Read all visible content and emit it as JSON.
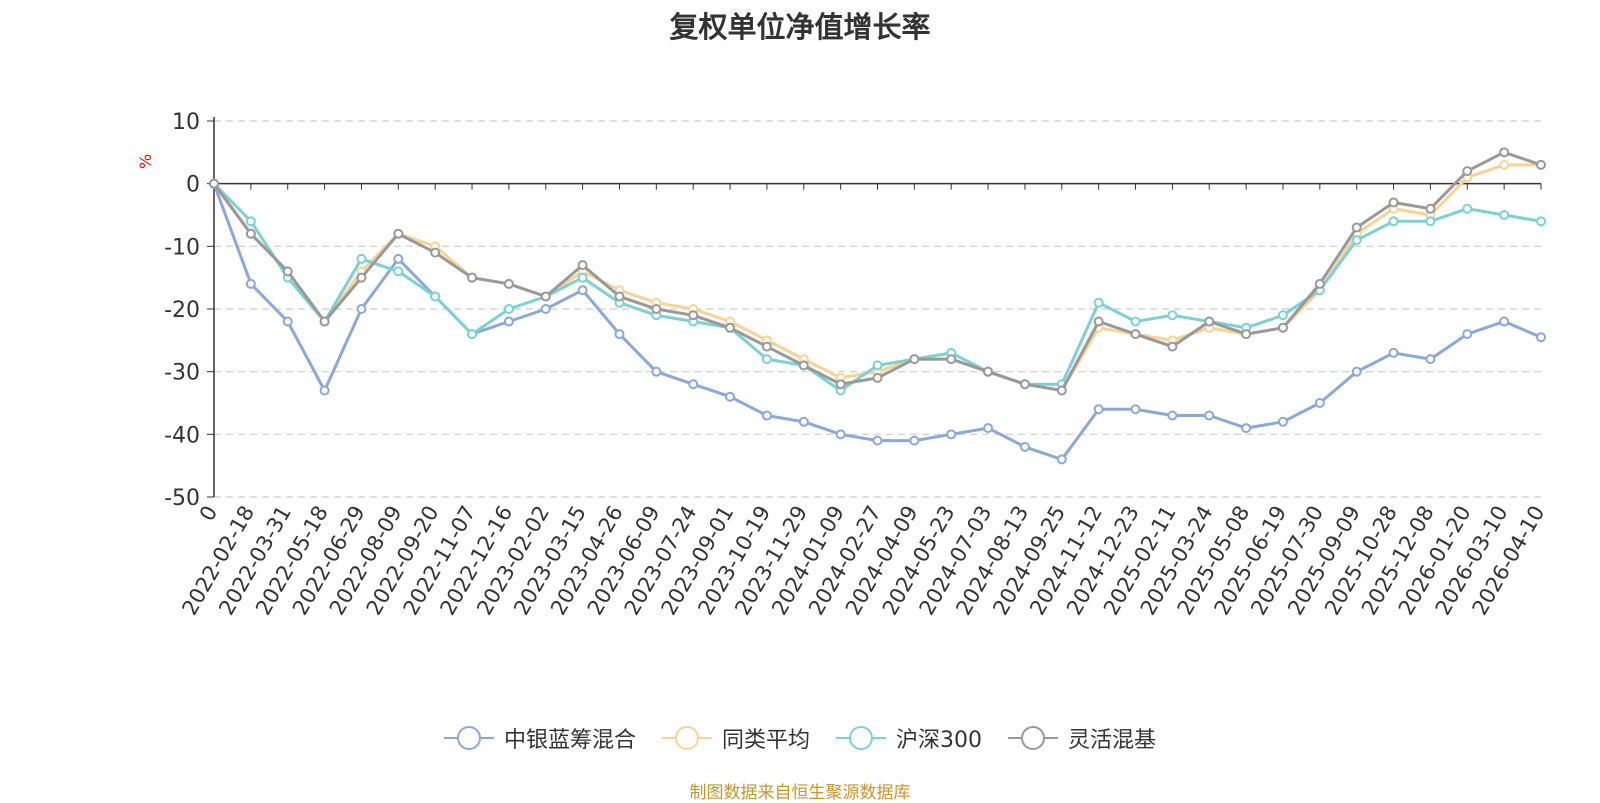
{
  "chart_data": {
    "type": "line",
    "title": "复权单位净值增长率",
    "ylabel": "%",
    "ylim": [
      -50,
      10
    ],
    "yticks": [
      10,
      0,
      -10,
      -20,
      -30,
      -40,
      -50
    ],
    "x_tick_labels": [
      "0",
      "2022-02-18",
      "2022-03-31",
      "2022-05-18",
      "2022-06-29",
      "2022-08-09",
      "2022-09-20",
      "2022-11-07",
      "2022-12-16",
      "2023-02-02",
      "2023-03-15",
      "2023-04-26",
      "2023-06-09",
      "2023-07-24",
      "2023-09-01",
      "2023-10-19",
      "2023-11-29",
      "2024-01-09",
      "2024-02-27",
      "2024-04-09",
      "2024-05-23",
      "2024-07-03",
      "2024-08-13",
      "2024-09-25",
      "2024-11-12",
      "2024-12-23",
      "2025-02-11",
      "2025-03-24",
      "2025-05-08",
      "2025-06-19",
      "2025-07-30",
      "2025-09-09",
      "2025-10-28",
      "2025-12-08",
      "2026-01-20",
      "2026-03-10",
      "2026-04-10"
    ],
    "x_index": [
      0,
      1,
      2,
      3,
      4,
      5,
      6,
      7,
      8,
      9,
      10,
      11,
      12,
      13,
      14,
      15,
      16,
      17,
      18,
      19,
      20,
      21,
      22,
      23,
      24,
      25,
      26,
      27,
      28,
      29,
      30,
      31,
      32,
      33,
      34,
      35,
      36
    ],
    "series": [
      {
        "name": "中银蓝筹混合",
        "color": "#8ba8d8",
        "values": [
          0,
          -16,
          -22,
          -33,
          -20,
          -12,
          -18,
          -24,
          -22,
          -20,
          -17,
          -24,
          -30,
          -32,
          -34,
          -37,
          -38,
          -40,
          -41,
          -41,
          -40,
          -39,
          -42,
          -44,
          -36,
          -36,
          -37,
          -37,
          -39,
          -38,
          -35,
          -30,
          -27,
          -28,
          -24,
          -22,
          -24.5
        ]
      },
      {
        "name": "同类平均",
        "color": "#f9d393",
        "values": [
          0,
          -8,
          -14,
          -22,
          -14,
          -8,
          -10,
          -15,
          -16,
          -18,
          -14,
          -17,
          -19,
          -20,
          -22,
          -25,
          -28,
          -31,
          -30,
          -28,
          -28,
          -30,
          -32,
          -33,
          -23,
          -24,
          -25,
          -23,
          -24,
          -23,
          -17,
          -8,
          -4,
          -5,
          1,
          3,
          3
        ]
      },
      {
        "name": "沪深300",
        "color": "#7cd1d5",
        "values": [
          0,
          -6,
          -15,
          -22,
          -12,
          -14,
          -18,
          -24,
          -20,
          -18,
          -15,
          -19,
          -21,
          -22,
          -23,
          -28,
          -29,
          -33,
          -29,
          -28,
          -27,
          -30,
          -32,
          -32,
          -19,
          -22,
          -21,
          -22,
          -23,
          -21,
          -17,
          -9,
          -6,
          -6,
          -4,
          -5,
          -6
        ]
      },
      {
        "name": "灵活混基",
        "color": "#999999",
        "values": [
          0,
          -8,
          -14,
          -22,
          -15,
          -8,
          -11,
          -15,
          -16,
          -18,
          -13,
          -18,
          -20,
          -21,
          -23,
          -26,
          -29,
          -32,
          -31,
          -28,
          -28,
          -30,
          -32,
          -33,
          -22,
          -24,
          -26,
          -22,
          -24,
          -23,
          -16,
          -7,
          -3,
          -4,
          2,
          5,
          3
        ]
      }
    ]
  },
  "legend": {
    "items": [
      {
        "label": "中银蓝筹混合",
        "color": "#8ba8d8"
      },
      {
        "label": "同类平均",
        "color": "#f9d393"
      },
      {
        "label": "沪深300",
        "color": "#7cd1d5"
      },
      {
        "label": "灵活混基",
        "color": "#999999"
      }
    ]
  },
  "footer": {
    "source": "制图数据来自恒生聚源数据库"
  }
}
